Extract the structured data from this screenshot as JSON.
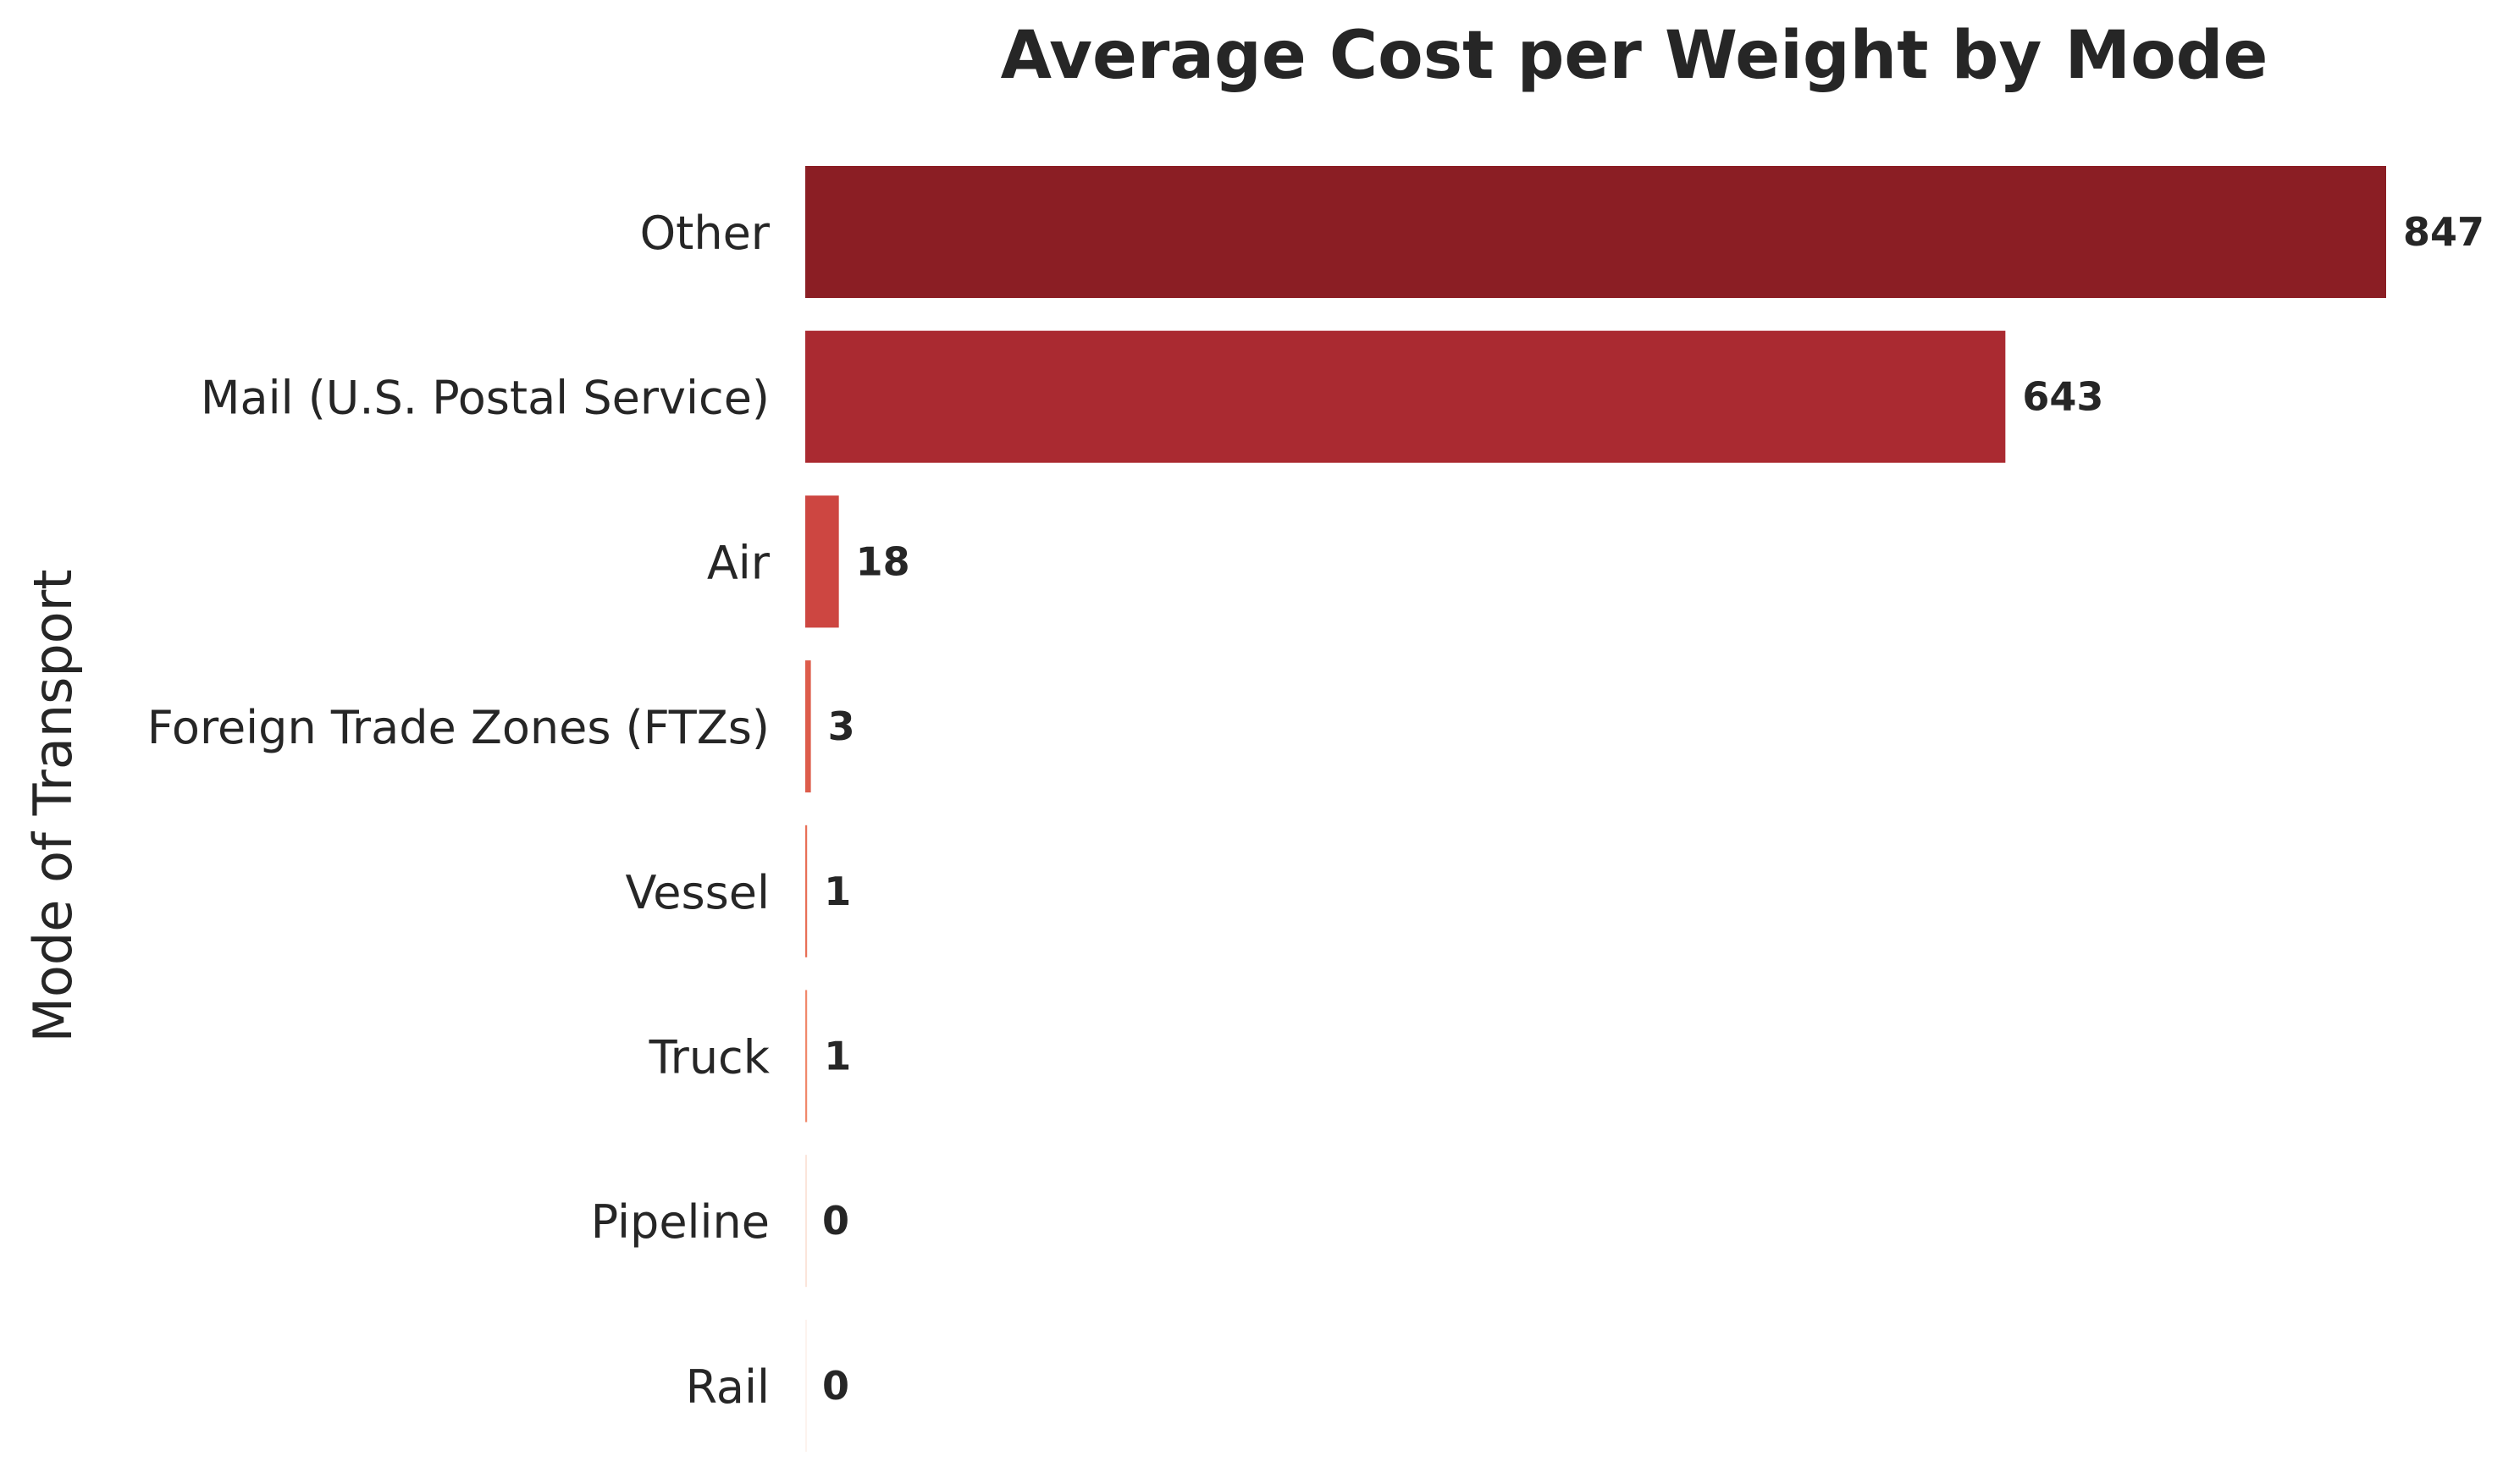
{
  "chart_data": {
    "type": "bar",
    "orientation": "horizontal",
    "title": "Average Cost per Weight by Mode",
    "xlabel": "",
    "ylabel": "Mode of Transport",
    "categories": [
      "Other",
      "Mail (U.S. Postal Service)",
      "Air",
      "Foreign Trade Zones (FTZs)",
      "Vessel",
      "Truck",
      "Pipeline",
      "Rail"
    ],
    "values": [
      847,
      643,
      18,
      3,
      1,
      1,
      0,
      0
    ],
    "value_labels": [
      "847",
      "643",
      "18",
      "3",
      "1",
      "1",
      "0",
      "0"
    ],
    "xlim": [
      0,
      847
    ],
    "grid": false,
    "legend": "none",
    "colors": [
      "#8b1e24",
      "#aa2a31",
      "#cd4641",
      "#dd5c4b",
      "#e86f56",
      "#f0886b",
      "#fbe5db",
      "#fdf3ee"
    ]
  }
}
